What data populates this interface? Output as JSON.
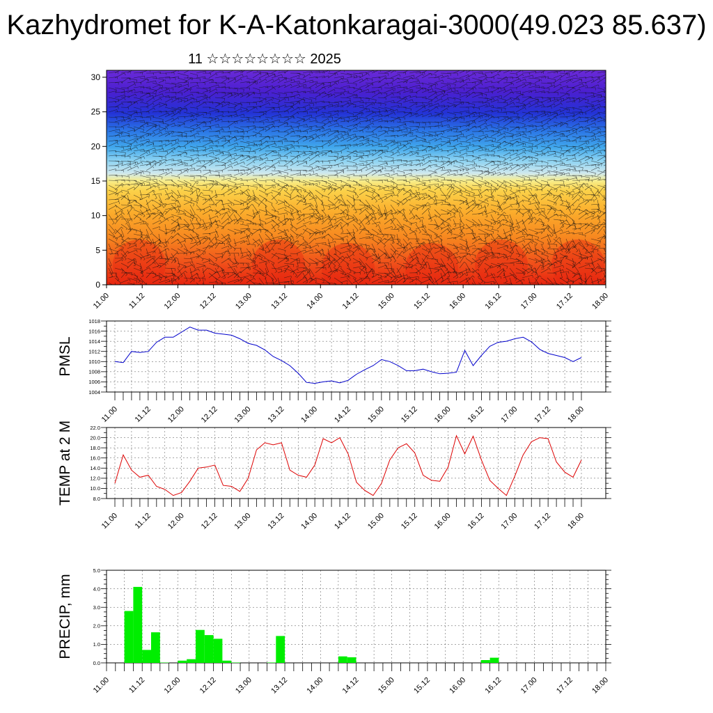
{
  "title": "Kazhydromet for K-A-Katonkaragai-3000(49.023 85.637)",
  "subtitle": "11 ☆☆☆☆☆☆☆☆ 2025",
  "chart_data": [
    {
      "type": "heatmap",
      "description": "Vertical cross-section with wind barbs",
      "ylim": [
        0,
        31
      ],
      "yticks": [
        0,
        5,
        10,
        15,
        20,
        25,
        30
      ],
      "xticks": [
        "11.00",
        "11.12",
        "12.00",
        "12.12",
        "13.00",
        "13.12",
        "14.00",
        "14.12",
        "15.00",
        "15.12",
        "16.00",
        "16.12",
        "17.00",
        "17.12",
        "18.00"
      ],
      "colors": {
        "low": "#e62a12",
        "mid_warm": "#f7c935",
        "mid_cool": "#8fd6f5",
        "high": "#2a1fd8"
      }
    },
    {
      "type": "line",
      "ylabel": "PMSL",
      "ylim": [
        1004,
        1018
      ],
      "yticks": [
        "1018",
        "1016",
        "1014",
        "1012",
        "1010",
        "1008",
        "1006",
        "1004"
      ],
      "xticks": [
        "11.00",
        "11.12",
        "12.00",
        "12.12",
        "13.00",
        "13.12",
        "14.00",
        "14.12",
        "15.00",
        "15.12",
        "16.00",
        "16.12",
        "17.00",
        "17.12",
        "18.00"
      ],
      "series": [
        {
          "color": "#0000cc",
          "x_hours": [
            0,
            3,
            6,
            9,
            12,
            15,
            18,
            21,
            24,
            27,
            30,
            33,
            36,
            39,
            42,
            45,
            48,
            51,
            54,
            57,
            60,
            63,
            66,
            69,
            72,
            75,
            78,
            81,
            84,
            87,
            90,
            93,
            96,
            99,
            102,
            105,
            108,
            111,
            114,
            117,
            120,
            123,
            126,
            129,
            132,
            135,
            138,
            141,
            144,
            147,
            150,
            153,
            156,
            159,
            162,
            165,
            168
          ],
          "values": [
            1010.0,
            1009.8,
            1012.0,
            1011.8,
            1012.0,
            1013.8,
            1014.8,
            1014.8,
            1015.8,
            1016.8,
            1016.2,
            1016.2,
            1015.6,
            1015.4,
            1015.2,
            1014.5,
            1013.6,
            1013.2,
            1012.3,
            1011.0,
            1010.2,
            1009.2,
            1007.7,
            1005.9,
            1005.7,
            1006.0,
            1006.2,
            1005.8,
            1006.3,
            1007.5,
            1008.4,
            1009.2,
            1010.4,
            1010.0,
            1009.2,
            1008.2,
            1008.2,
            1008.5,
            1008.0,
            1007.6,
            1007.7,
            1007.9,
            1012.2,
            1009.2,
            1011.2,
            1013.0,
            1013.8,
            1014.0,
            1014.5,
            1014.8,
            1013.9,
            1012.4,
            1011.6,
            1011.2,
            1010.8,
            1010.0,
            1010.8
          ]
        }
      ]
    },
    {
      "type": "line",
      "ylabel": "TEMP at 2 M",
      "ylim": [
        8.0,
        22.0
      ],
      "yticks": [
        "22.0",
        "20.0",
        "18.0",
        "16.0",
        "14.0",
        "12.0",
        "10.0",
        "8.0"
      ],
      "xticks": [
        "11.00",
        "11.12",
        "12.00",
        "12.12",
        "13.00",
        "13.12",
        "14.00",
        "14.12",
        "15.00",
        "15.12",
        "16.00",
        "16.12",
        "17.00",
        "17.12",
        "18.00"
      ],
      "series": [
        {
          "color": "#dd0000",
          "x_hours": [
            0,
            3,
            6,
            9,
            12,
            15,
            18,
            21,
            24,
            27,
            30,
            33,
            36,
            39,
            42,
            45,
            48,
            51,
            54,
            57,
            60,
            63,
            66,
            69,
            72,
            75,
            78,
            81,
            84,
            87,
            90,
            93,
            96,
            99,
            102,
            105,
            108,
            111,
            114,
            117,
            120,
            123,
            126,
            129,
            132,
            135,
            138,
            141,
            144,
            147,
            150,
            153,
            156,
            159,
            162,
            165,
            168
          ],
          "values": [
            11.0,
            16.6,
            13.6,
            12.2,
            12.6,
            10.4,
            9.8,
            8.6,
            9.2,
            11.4,
            14.0,
            14.2,
            14.6,
            10.6,
            10.4,
            9.4,
            12.0,
            17.6,
            19.0,
            18.6,
            19.0,
            13.6,
            12.6,
            12.2,
            14.6,
            19.8,
            19.0,
            20.0,
            16.8,
            11.2,
            9.6,
            8.6,
            11.0,
            15.6,
            18.0,
            18.8,
            17.0,
            12.6,
            11.6,
            11.4,
            14.2,
            20.4,
            16.8,
            20.3,
            15.6,
            11.6,
            10.0,
            8.6,
            12.4,
            16.6,
            19.2,
            20.0,
            19.8,
            15.2,
            13.2,
            12.2,
            15.6
          ]
        }
      ]
    },
    {
      "type": "bar",
      "ylabel": "PRECIP, mm",
      "ylim": [
        0,
        5.0
      ],
      "yticks": [
        "5.0",
        "4.0",
        "3.0",
        "2.0",
        "1.0",
        "0.0"
      ],
      "xticks": [
        "11.00",
        "11.12",
        "12.00",
        "12.12",
        "13.00",
        "13.12",
        "14.00",
        "14.12",
        "15.00",
        "15.12",
        "16.00",
        "16.12",
        "17.00",
        "17.12",
        "18.00"
      ],
      "color": "#00ee00",
      "bar_hours": [
        6,
        9,
        12,
        15,
        18,
        24,
        27,
        30,
        33,
        36,
        39,
        42,
        54,
        57,
        78,
        81,
        126,
        129
      ],
      "values": [
        2.8,
        4.1,
        0.7,
        1.65,
        0.02,
        0.12,
        0.2,
        1.78,
        1.5,
        1.3,
        0.12,
        0.02,
        0.02,
        1.45,
        0.35,
        0.3,
        0.15,
        0.28
      ]
    }
  ]
}
